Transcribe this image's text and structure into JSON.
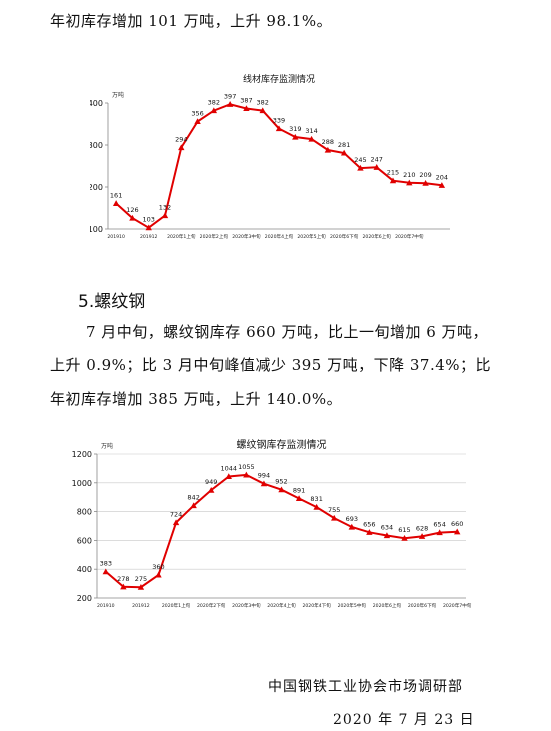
{
  "top_line": "年初库存增加 101 万吨，上升 98.1%。",
  "section5": {
    "heading": "5.螺纹钢",
    "para_lines": [
      "7 月中旬，螺纹钢库存 660 万吨，比上一旬增加 6 万吨，",
      "上升 0.9%；比 3 月中旬峰值减少 395 万吨，下降 37.4%；比",
      "年初库存增加 385 万吨，上升 140.0%。"
    ]
  },
  "footer": {
    "org": "中国钢铁工业协会市场调研部",
    "date": "2020 年 7 月 23 日"
  },
  "colors": {
    "series": "#e00000",
    "axis": "#888888",
    "grid": "#c8c8c8"
  },
  "chart_data": [
    {
      "type": "line",
      "title": "线材库存监测情况",
      "unit": "万吨",
      "ylim": [
        100,
        400
      ],
      "yticks": [
        100,
        200,
        300,
        400
      ],
      "x_labels": [
        "201910",
        "201912",
        "2020年1上旬",
        "2020年2上旬",
        "2020年3中旬",
        "2020年4上旬",
        "2020年5上旬",
        "2020年6下旬",
        "2020年6上旬",
        "2020年7中旬"
      ],
      "x_label_idx": [
        0,
        2,
        4,
        6,
        8,
        10,
        12,
        14,
        16,
        18
      ],
      "values": [
        161,
        126,
        103,
        132,
        294,
        356,
        382,
        397,
        387,
        382,
        339,
        319,
        314,
        288,
        281,
        245,
        247,
        215,
        210,
        209,
        204
      ]
    },
    {
      "type": "line",
      "title": "螺纹钢库存监测情况",
      "unit": "万吨",
      "ylim": [
        200,
        1200
      ],
      "yticks": [
        200,
        400,
        600,
        800,
        1000,
        1200
      ],
      "x_labels": [
        "201910",
        "201912",
        "2020年1上旬",
        "2020年2下旬",
        "2020年3中旬",
        "2020年4上旬",
        "2020年4下旬",
        "2020年5中旬",
        "2020年6上旬",
        "2020年6下旬",
        "2020年7中旬"
      ],
      "x_label_idx": [
        0,
        2,
        4,
        6,
        8,
        10,
        12,
        14,
        16,
        18,
        20
      ],
      "values": [
        383,
        278,
        275,
        360,
        724,
        842,
        949,
        1044,
        1055,
        994,
        952,
        891,
        831,
        755,
        693,
        656,
        634,
        615,
        628,
        654,
        660
      ]
    }
  ]
}
